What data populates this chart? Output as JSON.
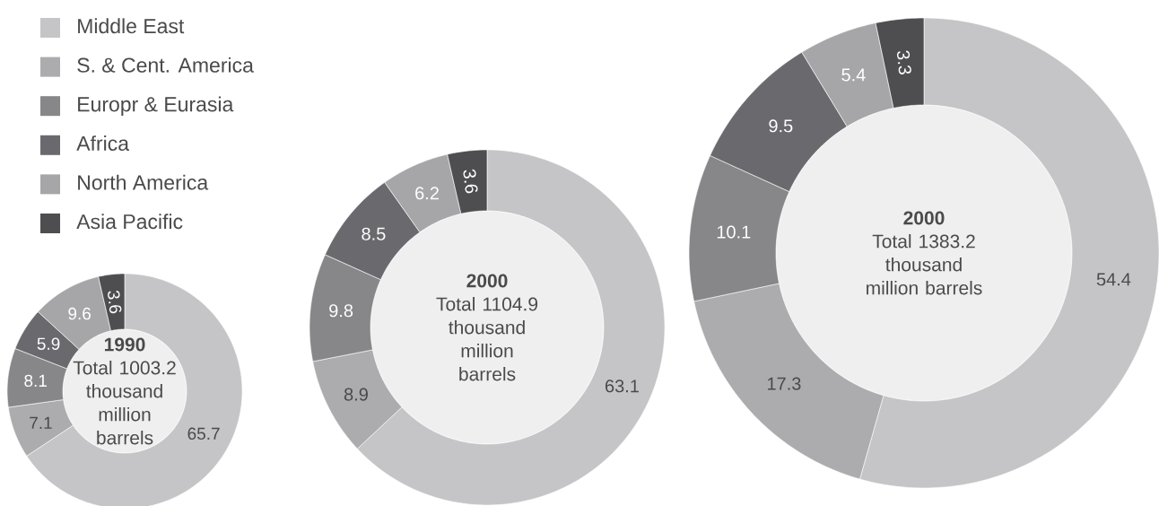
{
  "chart_data": [
    {
      "type": "donut",
      "title": "1990",
      "subtitle": "Total 1003.2 thousand million barrels",
      "categories": [
        "Middle East",
        "S. & Cent. America",
        "Europr & Eurasia",
        "Africa",
        "North America",
        "Asia Pacific"
      ],
      "values": [
        65.7,
        7.1,
        8.1,
        5.9,
        9.6,
        3.6
      ],
      "colors": [
        "#c5c5c7",
        "#acacae",
        "#87878a",
        "#6a6a6e",
        "#a6a6a8",
        "#4e4e51"
      ],
      "data_labels": true,
      "legend": "top"
    },
    {
      "type": "donut",
      "title": "2000",
      "subtitle": "Total 1104.9 thousand million barrels",
      "values": [
        63.1,
        8.9,
        9.8,
        8.5,
        6.2,
        3.6
      ],
      "colors": [
        "#c5c5c7",
        "#acacae",
        "#87878a",
        "#6a6a6e",
        "#a6a6a8",
        "#4e4e51"
      ],
      "data_labels": true
    },
    {
      "type": "donut",
      "title": "2000",
      "subtitle": "Total 1383.2 thousand million barrels",
      "values": [
        54.4,
        17.3,
        10.1,
        9.5,
        5.4,
        3.3
      ],
      "colors": [
        "#c5c5c7",
        "#acacae",
        "#87878a",
        "#6a6a6e",
        "#a6a6a8",
        "#4e4e51"
      ],
      "data_labels": true
    }
  ]
}
